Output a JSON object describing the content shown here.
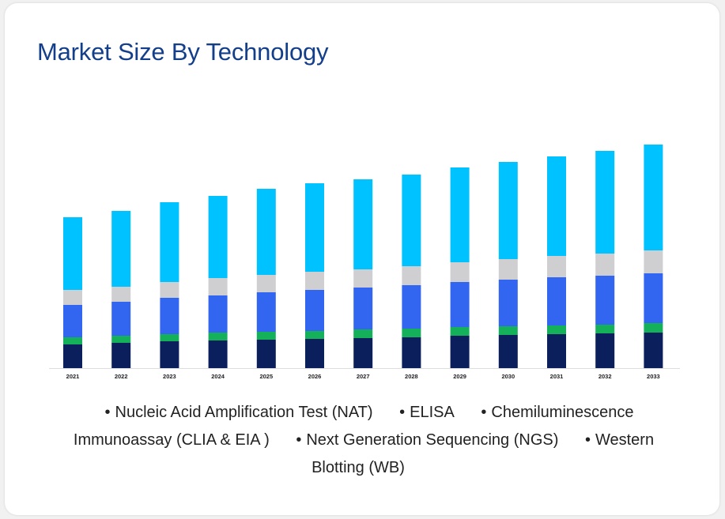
{
  "title": "Market Size By Technology",
  "chart_data": {
    "type": "bar",
    "stacked": true,
    "categories": [
      "2021",
      "2022",
      "2023",
      "2024",
      "2025",
      "2026",
      "2027",
      "2028",
      "2029",
      "2030",
      "2031",
      "2032",
      "2033"
    ],
    "series": [
      {
        "name": "Nucleic Acid Amplification Test (NAT)",
        "color": "#0a1f5c",
        "values": [
          30,
          32,
          34,
          35,
          36,
          37,
          38,
          39,
          41,
          42,
          43,
          44,
          45
        ]
      },
      {
        "name": "ELISA",
        "color": "#14b05a",
        "values": [
          9,
          9,
          9,
          10,
          10,
          10,
          11,
          11,
          11,
          11,
          11,
          11,
          12
        ]
      },
      {
        "name": "Chemiluminescence Immunoassay (CLIA & EIA )",
        "color": "#3366f0",
        "values": [
          41,
          43,
          46,
          47,
          50,
          52,
          53,
          55,
          57,
          59,
          61,
          62,
          63
        ]
      },
      {
        "name": "Next Generation Sequencing (NGS)",
        "color": "#cfcfd1",
        "values": [
          19,
          19,
          20,
          22,
          22,
          23,
          23,
          24,
          25,
          26,
          27,
          28,
          29
        ]
      },
      {
        "name": "Western Blotting (WB)",
        "color": "#00c2ff",
        "values": [
          92,
          96,
          101,
          104,
          109,
          112,
          114,
          116,
          120,
          123,
          126,
          130,
          134
        ]
      }
    ],
    "xlabel": "",
    "ylabel": "",
    "ylim": [
      0,
      300
    ],
    "grid": false,
    "legend_position": "bottom"
  }
}
